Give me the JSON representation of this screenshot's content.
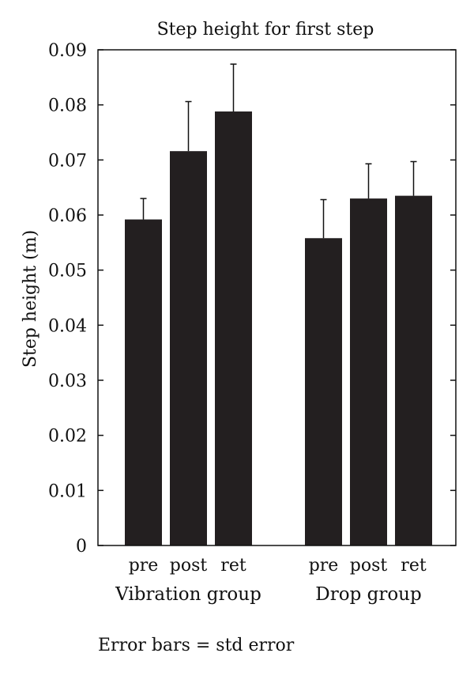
{
  "chart_data": {
    "type": "bar",
    "title": "Step height for first step",
    "ylabel": "Step height (m)",
    "xlabel": "",
    "ylim": [
      0,
      0.09
    ],
    "yticks": [
      "0",
      "0.01",
      "0.02",
      "0.03",
      "0.04",
      "0.05",
      "0.06",
      "0.07",
      "0.08",
      "0.09"
    ],
    "ytick_values": [
      0,
      0.01,
      0.02,
      0.03,
      0.04,
      0.05,
      0.06,
      0.07,
      0.08,
      0.09
    ],
    "grid": false,
    "bar_color": "#231f20",
    "groups": [
      {
        "name": "Vibration group",
        "bars": [
          {
            "category": "pre",
            "value": 0.0592,
            "error": 0.0038
          },
          {
            "category": "post",
            "value": 0.0716,
            "error": 0.009
          },
          {
            "category": "ret",
            "value": 0.0788,
            "error": 0.0086
          }
        ]
      },
      {
        "name": "Drop group",
        "bars": [
          {
            "category": "pre",
            "value": 0.0558,
            "error": 0.007
          },
          {
            "category": "post",
            "value": 0.063,
            "error": 0.0063
          },
          {
            "category": "ret",
            "value": 0.0635,
            "error": 0.0062
          }
        ]
      }
    ],
    "annotation": "Error bars = std error"
  }
}
